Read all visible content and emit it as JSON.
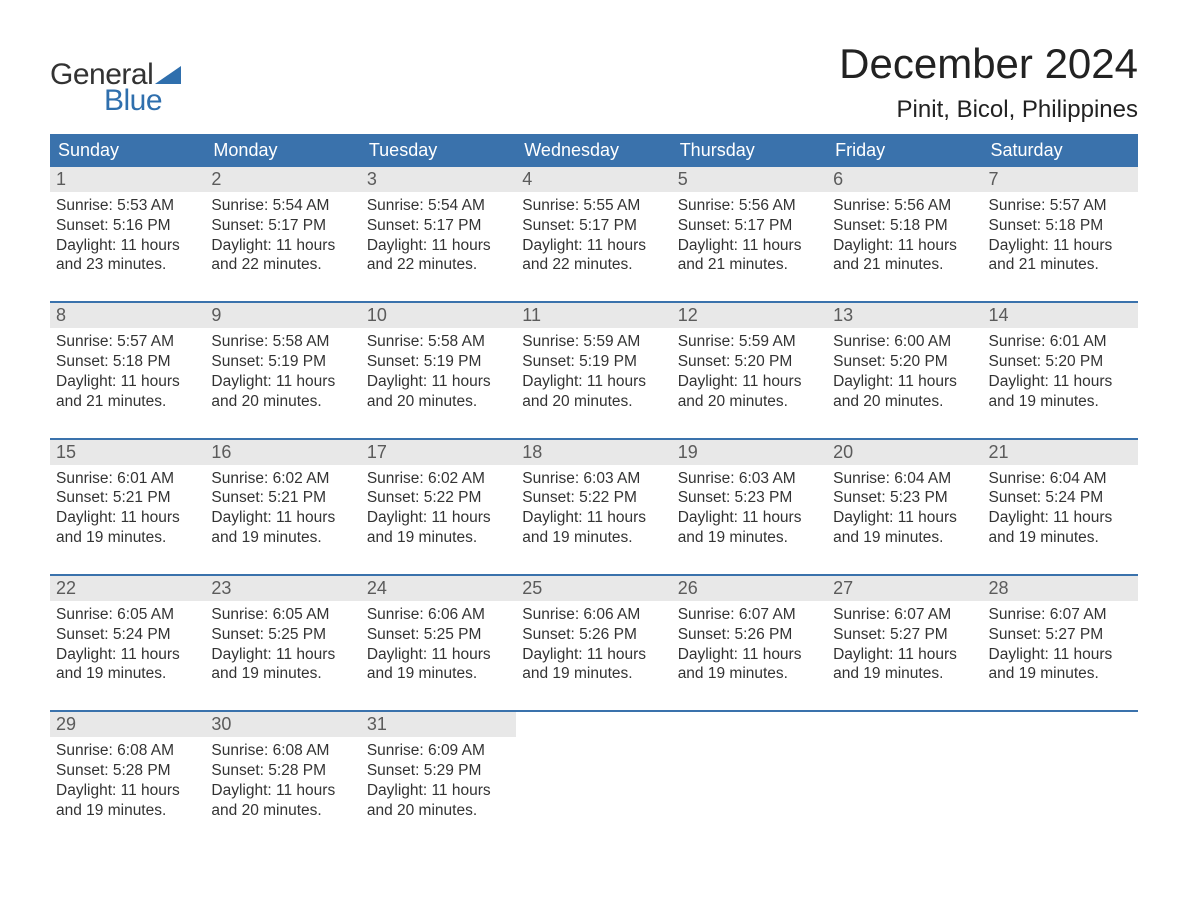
{
  "logo": {
    "text_general": "General",
    "text_blue": "Blue",
    "flag_color": "#2f6fad"
  },
  "title": "December 2024",
  "location": "Pinit, Bicol, Philippines",
  "header_bg": "#3a72ac",
  "header_fg": "#ffffff",
  "daynum_bg": "#e8e8e8",
  "daynum_fg": "#5b5b5b",
  "week_border": "#3a72ac",
  "text_color": "#333333",
  "day_headers": [
    "Sunday",
    "Monday",
    "Tuesday",
    "Wednesday",
    "Thursday",
    "Friday",
    "Saturday"
  ],
  "weeks": [
    [
      {
        "n": "1",
        "sunrise": "5:53 AM",
        "sunset": "5:16 PM",
        "dl1": "Daylight: 11 hours",
        "dl2": "and 23 minutes."
      },
      {
        "n": "2",
        "sunrise": "5:54 AM",
        "sunset": "5:17 PM",
        "dl1": "Daylight: 11 hours",
        "dl2": "and 22 minutes."
      },
      {
        "n": "3",
        "sunrise": "5:54 AM",
        "sunset": "5:17 PM",
        "dl1": "Daylight: 11 hours",
        "dl2": "and 22 minutes."
      },
      {
        "n": "4",
        "sunrise": "5:55 AM",
        "sunset": "5:17 PM",
        "dl1": "Daylight: 11 hours",
        "dl2": "and 22 minutes."
      },
      {
        "n": "5",
        "sunrise": "5:56 AM",
        "sunset": "5:17 PM",
        "dl1": "Daylight: 11 hours",
        "dl2": "and 21 minutes."
      },
      {
        "n": "6",
        "sunrise": "5:56 AM",
        "sunset": "5:18 PM",
        "dl1": "Daylight: 11 hours",
        "dl2": "and 21 minutes."
      },
      {
        "n": "7",
        "sunrise": "5:57 AM",
        "sunset": "5:18 PM",
        "dl1": "Daylight: 11 hours",
        "dl2": "and 21 minutes."
      }
    ],
    [
      {
        "n": "8",
        "sunrise": "5:57 AM",
        "sunset": "5:18 PM",
        "dl1": "Daylight: 11 hours",
        "dl2": "and 21 minutes."
      },
      {
        "n": "9",
        "sunrise": "5:58 AM",
        "sunset": "5:19 PM",
        "dl1": "Daylight: 11 hours",
        "dl2": "and 20 minutes."
      },
      {
        "n": "10",
        "sunrise": "5:58 AM",
        "sunset": "5:19 PM",
        "dl1": "Daylight: 11 hours",
        "dl2": "and 20 minutes."
      },
      {
        "n": "11",
        "sunrise": "5:59 AM",
        "sunset": "5:19 PM",
        "dl1": "Daylight: 11 hours",
        "dl2": "and 20 minutes."
      },
      {
        "n": "12",
        "sunrise": "5:59 AM",
        "sunset": "5:20 PM",
        "dl1": "Daylight: 11 hours",
        "dl2": "and 20 minutes."
      },
      {
        "n": "13",
        "sunrise": "6:00 AM",
        "sunset": "5:20 PM",
        "dl1": "Daylight: 11 hours",
        "dl2": "and 20 minutes."
      },
      {
        "n": "14",
        "sunrise": "6:01 AM",
        "sunset": "5:20 PM",
        "dl1": "Daylight: 11 hours",
        "dl2": "and 19 minutes."
      }
    ],
    [
      {
        "n": "15",
        "sunrise": "6:01 AM",
        "sunset": "5:21 PM",
        "dl1": "Daylight: 11 hours",
        "dl2": "and 19 minutes."
      },
      {
        "n": "16",
        "sunrise": "6:02 AM",
        "sunset": "5:21 PM",
        "dl1": "Daylight: 11 hours",
        "dl2": "and 19 minutes."
      },
      {
        "n": "17",
        "sunrise": "6:02 AM",
        "sunset": "5:22 PM",
        "dl1": "Daylight: 11 hours",
        "dl2": "and 19 minutes."
      },
      {
        "n": "18",
        "sunrise": "6:03 AM",
        "sunset": "5:22 PM",
        "dl1": "Daylight: 11 hours",
        "dl2": "and 19 minutes."
      },
      {
        "n": "19",
        "sunrise": "6:03 AM",
        "sunset": "5:23 PM",
        "dl1": "Daylight: 11 hours",
        "dl2": "and 19 minutes."
      },
      {
        "n": "20",
        "sunrise": "6:04 AM",
        "sunset": "5:23 PM",
        "dl1": "Daylight: 11 hours",
        "dl2": "and 19 minutes."
      },
      {
        "n": "21",
        "sunrise": "6:04 AM",
        "sunset": "5:24 PM",
        "dl1": "Daylight: 11 hours",
        "dl2": "and 19 minutes."
      }
    ],
    [
      {
        "n": "22",
        "sunrise": "6:05 AM",
        "sunset": "5:24 PM",
        "dl1": "Daylight: 11 hours",
        "dl2": "and 19 minutes."
      },
      {
        "n": "23",
        "sunrise": "6:05 AM",
        "sunset": "5:25 PM",
        "dl1": "Daylight: 11 hours",
        "dl2": "and 19 minutes."
      },
      {
        "n": "24",
        "sunrise": "6:06 AM",
        "sunset": "5:25 PM",
        "dl1": "Daylight: 11 hours",
        "dl2": "and 19 minutes."
      },
      {
        "n": "25",
        "sunrise": "6:06 AM",
        "sunset": "5:26 PM",
        "dl1": "Daylight: 11 hours",
        "dl2": "and 19 minutes."
      },
      {
        "n": "26",
        "sunrise": "6:07 AM",
        "sunset": "5:26 PM",
        "dl1": "Daylight: 11 hours",
        "dl2": "and 19 minutes."
      },
      {
        "n": "27",
        "sunrise": "6:07 AM",
        "sunset": "5:27 PM",
        "dl1": "Daylight: 11 hours",
        "dl2": "and 19 minutes."
      },
      {
        "n": "28",
        "sunrise": "6:07 AM",
        "sunset": "5:27 PM",
        "dl1": "Daylight: 11 hours",
        "dl2": "and 19 minutes."
      }
    ],
    [
      {
        "n": "29",
        "sunrise": "6:08 AM",
        "sunset": "5:28 PM",
        "dl1": "Daylight: 11 hours",
        "dl2": "and 19 minutes."
      },
      {
        "n": "30",
        "sunrise": "6:08 AM",
        "sunset": "5:28 PM",
        "dl1": "Daylight: 11 hours",
        "dl2": "and 20 minutes."
      },
      {
        "n": "31",
        "sunrise": "6:09 AM",
        "sunset": "5:29 PM",
        "dl1": "Daylight: 11 hours",
        "dl2": "and 20 minutes."
      },
      {
        "n": "",
        "empty": true
      },
      {
        "n": "",
        "empty": true
      },
      {
        "n": "",
        "empty": true
      },
      {
        "n": "",
        "empty": true
      }
    ]
  ],
  "labels": {
    "sunrise_prefix": "Sunrise: ",
    "sunset_prefix": "Sunset: "
  }
}
